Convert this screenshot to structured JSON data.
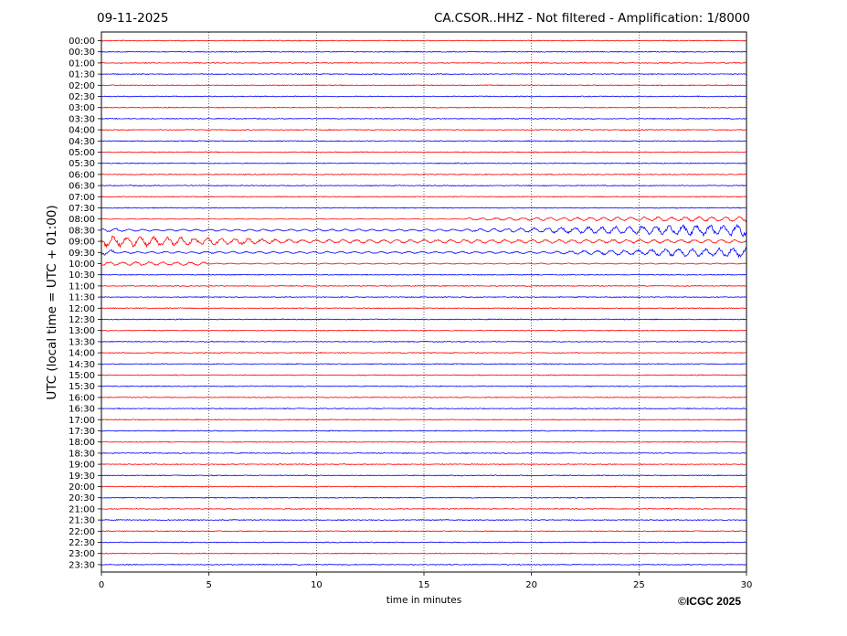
{
  "header": {
    "date": "09-11-2025",
    "title": "CA.CSOR..HHZ - Not filtered - Amplification: 1/8000"
  },
  "footer": {
    "copyright": "©ICGC 2025"
  },
  "chart_data": {
    "type": "line",
    "title": "CA.CSOR..HHZ - Not filtered - Amplification: 1/8000",
    "xlabel": "time in minutes",
    "ylabel": "UTC (local time = UTC + 01:00)",
    "xlim": [
      0,
      30
    ],
    "x_ticks": [
      0,
      5,
      10,
      15,
      20,
      25,
      30
    ],
    "rows": [
      "00:00",
      "00:30",
      "01:00",
      "01:30",
      "02:00",
      "02:30",
      "03:00",
      "03:30",
      "04:00",
      "04:30",
      "05:00",
      "05:30",
      "06:00",
      "06:30",
      "07:00",
      "07:30",
      "08:00",
      "08:30",
      "09:00",
      "09:30",
      "10:00",
      "10:30",
      "11:00",
      "11:30",
      "12:00",
      "12:30",
      "13:00",
      "13:30",
      "14:00",
      "14:30",
      "15:00",
      "15:30",
      "16:00",
      "16:30",
      "17:00",
      "17:30",
      "18:00",
      "18:30",
      "19:00",
      "19:30",
      "20:00",
      "20:30",
      "21:00",
      "21:30",
      "22:00",
      "22:30",
      "23:00",
      "23:30"
    ],
    "trace_colors": [
      "#ff0000",
      "#0000ff"
    ],
    "grid": "vertical dotted at each x tick",
    "event_rows": [
      "08:00",
      "08:30",
      "09:00",
      "09:30",
      "10:00"
    ]
  }
}
